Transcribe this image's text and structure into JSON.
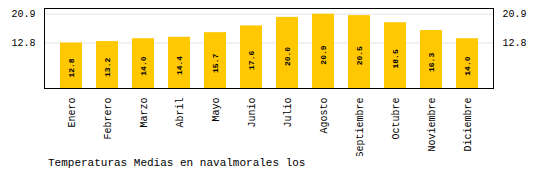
{
  "chart_data": {
    "type": "bar",
    "title": "Temperaturas Medias en navalmorales los",
    "categories": [
      "Enero",
      "Febrero",
      "Marzo",
      "Abril",
      "Mayo",
      "Junio",
      "Julio",
      "Agosto",
      "Septiembre",
      "Octubre",
      "Noviembre",
      "Diciembre"
    ],
    "values": [
      12.8,
      13.2,
      14.0,
      14.4,
      15.7,
      17.6,
      20.0,
      20.9,
      20.5,
      18.5,
      16.3,
      14.0
    ],
    "value_labels": [
      "12.8",
      "13.2",
      "14.0",
      "14.4",
      "15.7",
      "17.6",
      "20.0",
      "20.9",
      "20.5",
      "18.5",
      "16.3",
      "14.0"
    ],
    "color": "#FFC800",
    "ylim": [
      0,
      22.5
    ],
    "yticks": [
      12.8,
      20.9
    ],
    "grid": true,
    "data_labels": true
  }
}
